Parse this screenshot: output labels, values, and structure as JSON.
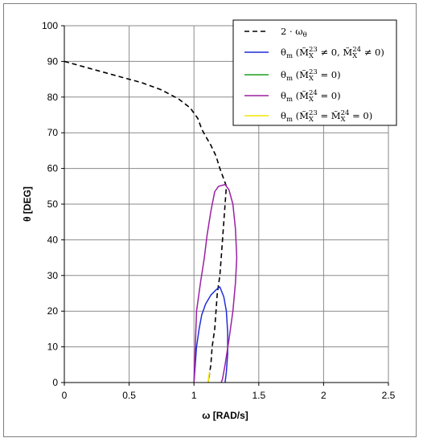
{
  "chart_data": {
    "type": "line",
    "xlabel": "ω [RAD/s]",
    "ylabel": "θ [DEG]",
    "xlim": [
      0,
      2.5
    ],
    "ylim": [
      0,
      100
    ],
    "x_ticks": [
      "0",
      "0.5",
      "1",
      "1.5",
      "2",
      "2.5"
    ],
    "y_ticks": [
      "0",
      "10",
      "20",
      "30",
      "40",
      "50",
      "60",
      "70",
      "80",
      "90",
      "100"
    ],
    "grid": true,
    "legend_position": "top-right",
    "series": [
      {
        "name": "2 · ω_θ",
        "color": "#000000",
        "dash": true,
        "points": [
          [
            0,
            90
          ],
          [
            0.2,
            88
          ],
          [
            0.4,
            86
          ],
          [
            0.6,
            84
          ],
          [
            0.75,
            82
          ],
          [
            0.88,
            79.5
          ],
          [
            0.97,
            77
          ],
          [
            1.03,
            74
          ],
          [
            1.06,
            71
          ],
          [
            1.09,
            69
          ],
          [
            1.13,
            66.5
          ],
          [
            1.17,
            63.5
          ],
          [
            1.2,
            60
          ],
          [
            1.23,
            57
          ],
          [
            1.25,
            55
          ],
          [
            1.24,
            50
          ],
          [
            1.23,
            45
          ],
          [
            1.22,
            40
          ],
          [
            1.21,
            35
          ],
          [
            1.2,
            30
          ],
          [
            1.18,
            25
          ],
          [
            1.17,
            20
          ],
          [
            1.16,
            15
          ],
          [
            1.14,
            10
          ],
          [
            1.13,
            5
          ],
          [
            1.11,
            0
          ]
        ]
      },
      {
        "name": "θ_m (M̃_X^23 ≠ 0, M̃_X^24 ≠ 0)",
        "color": "#1f2fd6",
        "dash": false,
        "points": [
          [
            1,
            0
          ],
          [
            1.01,
            5
          ],
          [
            1.02,
            10
          ],
          [
            1.04,
            15
          ],
          [
            1.06,
            19
          ],
          [
            1.09,
            22
          ],
          [
            1.13,
            24.5
          ],
          [
            1.17,
            26
          ],
          [
            1.2,
            26.8
          ],
          [
            1.23,
            24
          ],
          [
            1.25,
            20
          ],
          [
            1.26,
            14
          ],
          [
            1.26,
            8
          ],
          [
            1.25,
            3
          ],
          [
            1.24,
            0
          ]
        ]
      },
      {
        "name": "θ_m (M̃_X^23 = 0)",
        "color": "#1f9e1f",
        "dash": false,
        "points": [
          [
            1.11,
            0
          ],
          [
            1.115,
            1.5
          ],
          [
            1.12,
            2.5
          ]
        ]
      },
      {
        "name": "θ_m (M̃_X^24 = 0)",
        "color": "#9b1fa3",
        "dash": false,
        "points": [
          [
            1,
            0
          ],
          [
            1.01,
            10
          ],
          [
            1.02,
            20
          ],
          [
            1.05,
            28
          ],
          [
            1.08,
            35
          ],
          [
            1.1,
            41
          ],
          [
            1.13,
            48
          ],
          [
            1.16,
            53.5
          ],
          [
            1.19,
            55
          ],
          [
            1.24,
            55.5
          ],
          [
            1.27,
            54
          ],
          [
            1.3,
            50
          ],
          [
            1.32,
            43
          ],
          [
            1.33,
            35
          ],
          [
            1.32,
            28
          ],
          [
            1.3,
            20
          ],
          [
            1.27,
            12
          ],
          [
            1.24,
            5
          ],
          [
            1.22,
            1
          ],
          [
            1.21,
            0
          ]
        ]
      },
      {
        "name": "θ_m (M̃_X^23 = M̃_X^24 = 0)",
        "color": "#f2e600",
        "dash": false,
        "points": [
          [
            1.11,
            0
          ],
          [
            1.115,
            1.8
          ],
          [
            1.12,
            3
          ]
        ]
      }
    ]
  }
}
